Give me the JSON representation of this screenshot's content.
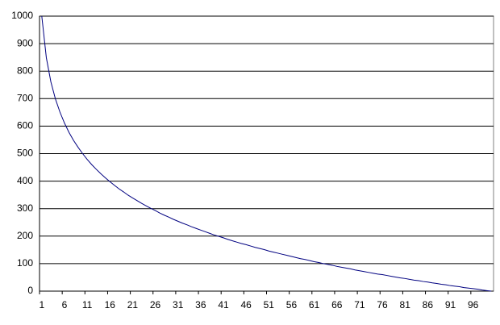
{
  "chart_data": {
    "type": "line",
    "categories": [
      "1",
      null,
      null,
      null,
      null,
      "6",
      null,
      null,
      null,
      null,
      "11",
      null,
      null,
      null,
      null,
      "16",
      null,
      null,
      null,
      null,
      "21",
      null,
      null,
      null,
      null,
      "26",
      null,
      null,
      null,
      null,
      "31",
      null,
      null,
      null,
      null,
      "36",
      null,
      null,
      null,
      null,
      "41",
      null,
      null,
      null,
      null,
      "46",
      null,
      null,
      null,
      null,
      "51",
      null,
      null,
      null,
      null,
      "56",
      null,
      null,
      null,
      null,
      "61",
      null,
      null,
      null,
      null,
      "66",
      null,
      null,
      null,
      null,
      "71",
      null,
      null,
      null,
      null,
      "76",
      null,
      null,
      null,
      null,
      "81",
      null,
      null,
      null,
      null,
      "86",
      null,
      null,
      null,
      null,
      "91",
      null,
      null,
      null,
      null,
      "96",
      null,
      null,
      null,
      null
    ],
    "values": [
      1000,
      849,
      761,
      699,
      651,
      611,
      577,
      548,
      523,
      500,
      479,
      460,
      443,
      427,
      412,
      398,
      385,
      372,
      361,
      349,
      339,
      329,
      319,
      310,
      301,
      293,
      284,
      276,
      269,
      261,
      254,
      247,
      241,
      234,
      228,
      222,
      216,
      210,
      204,
      199,
      194,
      188,
      183,
      178,
      173,
      169,
      164,
      159,
      155,
      151,
      146,
      142,
      138,
      134,
      130,
      126,
      122,
      118,
      115,
      111,
      107,
      104,
      100,
      97,
      94,
      90,
      87,
      84,
      81,
      77,
      74,
      71,
      68,
      65,
      62,
      60,
      57,
      54,
      51,
      48,
      46,
      43,
      40,
      38,
      35,
      33,
      30,
      28,
      25,
      23,
      20,
      18,
      16,
      13,
      11,
      9,
      7,
      4,
      2,
      0
    ],
    "color": "#000080",
    "ylim": [
      0,
      1000
    ],
    "yticks": [
      0,
      100,
      200,
      300,
      400,
      500,
      600,
      700,
      800,
      900,
      1000
    ],
    "grid": true
  }
}
